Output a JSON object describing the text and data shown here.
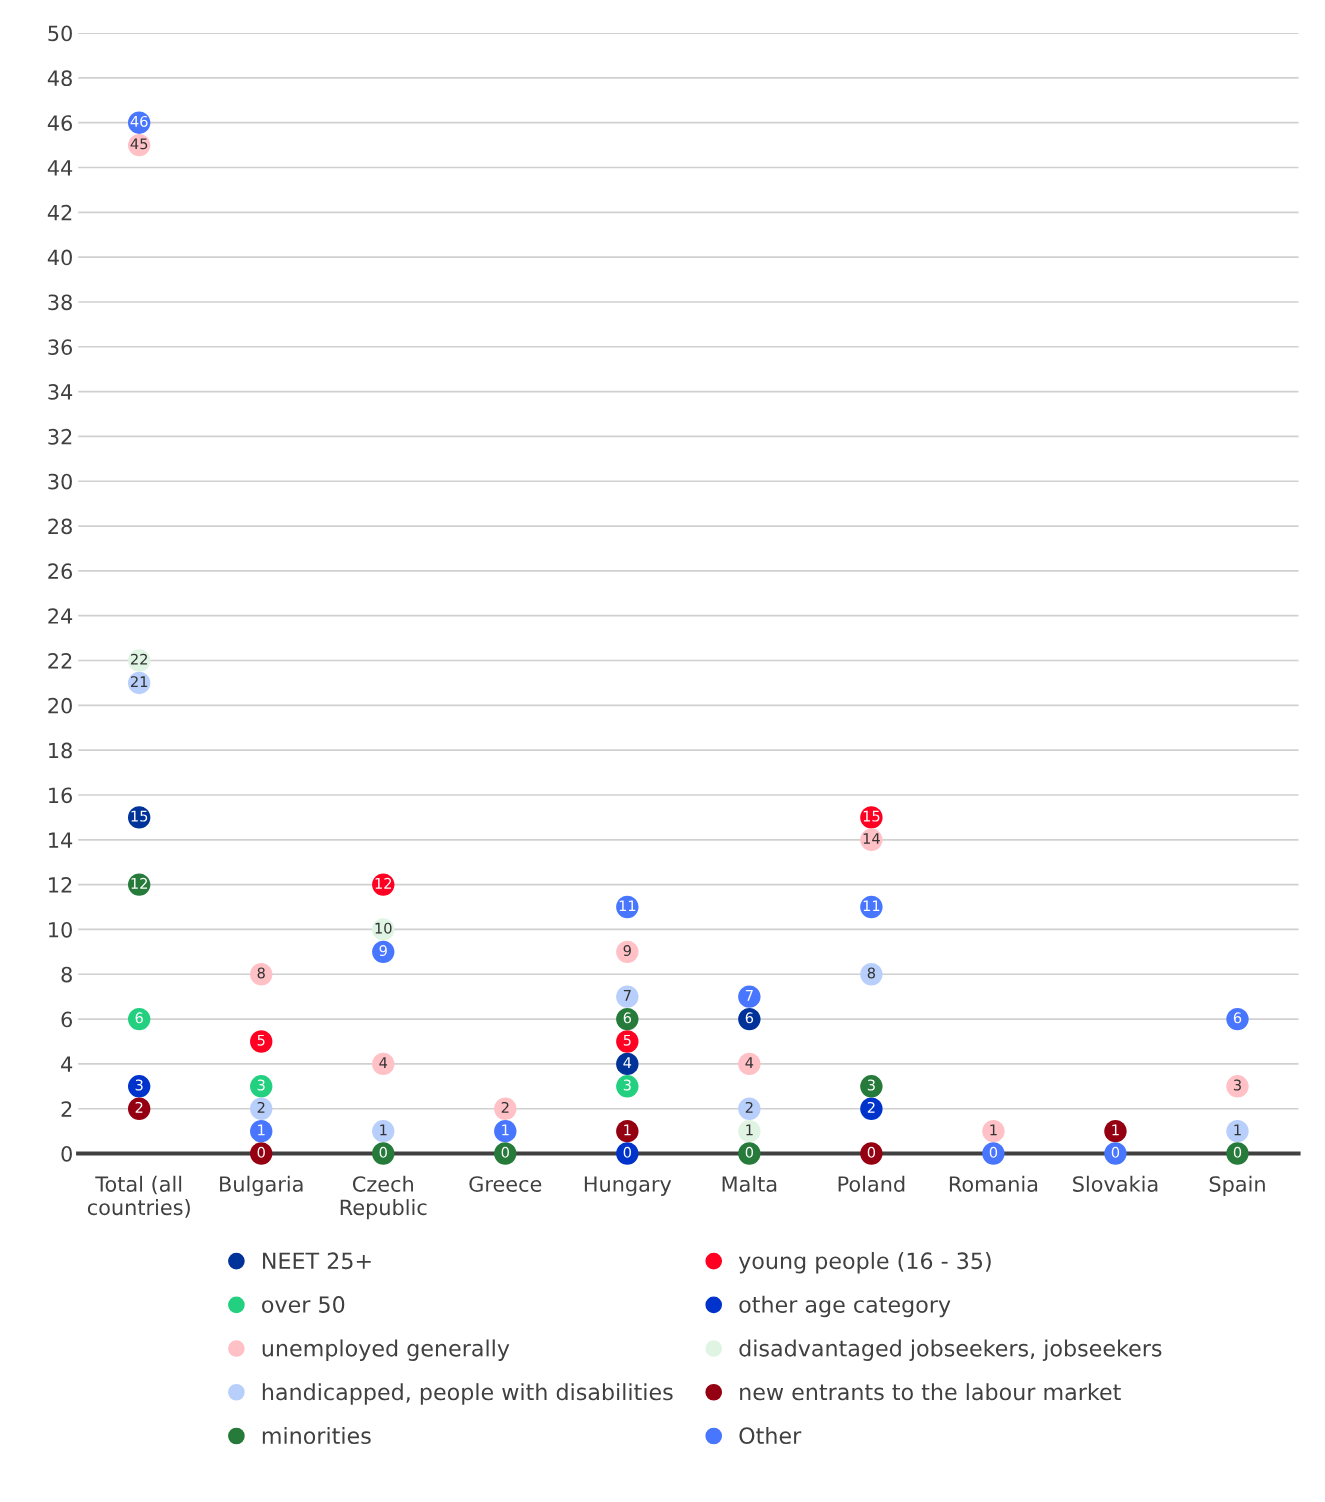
{
  "chart_data": {
    "type": "scatter",
    "categories": [
      "Total (all\ncountries)",
      "Bulgaria",
      "Czech\nRepublic",
      "Greece",
      "Hungary",
      "Malta",
      "Poland",
      "Romania",
      "Slovakia",
      "Spain"
    ],
    "ylim": [
      0,
      50
    ],
    "yticks": [
      0,
      2,
      4,
      6,
      8,
      10,
      12,
      14,
      16,
      18,
      20,
      22,
      24,
      26,
      28,
      30,
      32,
      34,
      36,
      38,
      40,
      42,
      44,
      46,
      48,
      50
    ],
    "grid": "y",
    "legend": "bottom",
    "marker": "circle",
    "data_labels": true,
    "series": [
      {
        "name": "NEET 25+",
        "color": "#003399",
        "values": [
          15,
          null,
          null,
          null,
          4,
          6,
          null,
          null,
          null,
          null
        ]
      },
      {
        "name": "young people (16 - 35)",
        "color": "#ff0022",
        "values": [
          null,
          5,
          12,
          null,
          5,
          null,
          15,
          null,
          null,
          null
        ]
      },
      {
        "name": "over 50",
        "color": "#22d07f",
        "values": [
          6,
          3,
          null,
          null,
          3,
          null,
          null,
          null,
          null,
          null
        ]
      },
      {
        "name": "other age category",
        "color": "#0033cc",
        "values": [
          3,
          null,
          null,
          null,
          0,
          null,
          2,
          null,
          null,
          null
        ]
      },
      {
        "name": "unemployed generally",
        "color": "#ffc0c6",
        "values": [
          45,
          8,
          4,
          2,
          9,
          4,
          14,
          1,
          null,
          3
        ]
      },
      {
        "name": "disadvantaged jobseekers, jobseekers",
        "color": "#e0f4e4",
        "values": [
          22,
          null,
          10,
          null,
          null,
          1,
          null,
          null,
          null,
          null
        ]
      },
      {
        "name": "handicapped, people with disabilities",
        "color": "#b8cffc",
        "values": [
          21,
          2,
          1,
          null,
          7,
          2,
          8,
          null,
          null,
          1
        ]
      },
      {
        "name": "new entrants to the labour market",
        "color": "#940012",
        "values": [
          2,
          0,
          null,
          null,
          1,
          null,
          0,
          null,
          1,
          null
        ]
      },
      {
        "name": "minorities",
        "color": "#267a3a",
        "values": [
          12,
          null,
          0,
          0,
          6,
          0,
          3,
          null,
          null,
          0
        ]
      },
      {
        "name": "Other",
        "color": "#4876ff",
        "values": [
          46,
          1,
          9,
          1,
          11,
          7,
          11,
          0,
          0,
          6
        ]
      }
    ]
  }
}
